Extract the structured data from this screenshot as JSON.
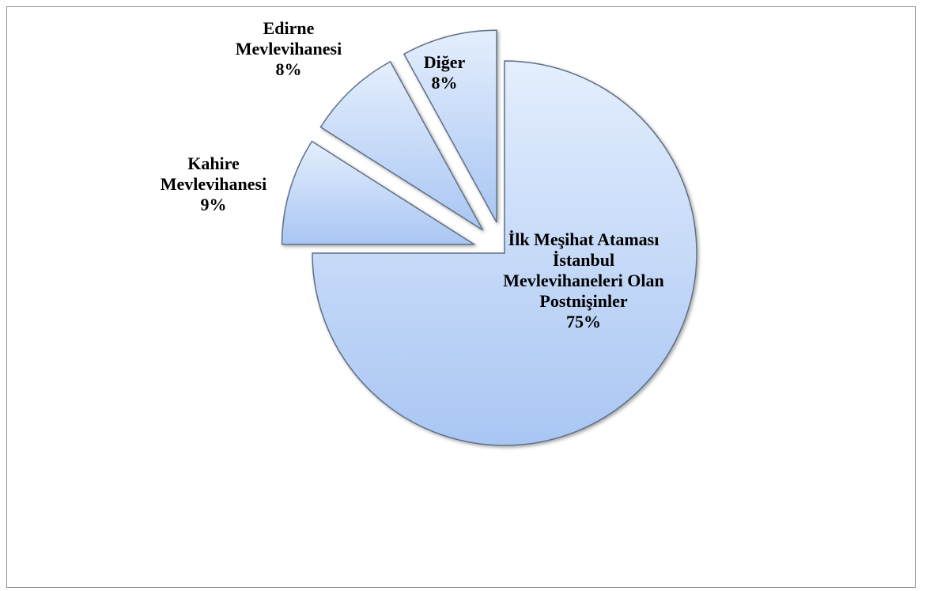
{
  "chart_data": {
    "type": "pie",
    "categories": [
      "İlk Meşihat Ataması İstanbul Mevlevihaneleri Olan Postnişinler",
      "Kahire Mevlevihanesi",
      "Edirne Mevlevihanesi",
      "Diğer"
    ],
    "values": [
      75,
      9,
      8,
      8
    ],
    "value_labels": [
      "75%",
      "9%",
      "8%",
      "8%"
    ],
    "color": "#a9c6f3"
  }
}
